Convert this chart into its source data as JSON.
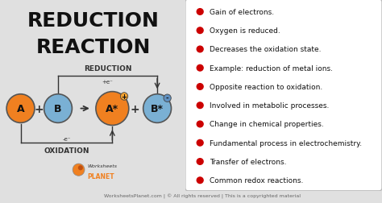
{
  "title_line1": "REDUCTION",
  "title_line2": "REACTION",
  "bg_color": "#e0e0e0",
  "right_panel_bg": "#ffffff",
  "title_color": "#111111",
  "title_fontsize": 18,
  "bullet_points": [
    "Gain of electrons.",
    "Oxygen is reduced.",
    "Decreases the oxidation state.",
    "Example: reduction of metal ions.",
    "Opposite reaction to oxidation.",
    "Involved in metabolic processes.",
    "Change in chemical properties.",
    "Fundamental process in electrochemistry.",
    "Transfer of electrons.",
    "Common redox reactions."
  ],
  "bullet_color": "#cc0000",
  "bullet_text_color": "#111111",
  "bullet_fontsize": 6.5,
  "circle_A_color": "#f08020",
  "circle_B_color": "#7ab0d4",
  "circle_Astar_color": "#f08020",
  "circle_Bstar_color": "#7ab0d4",
  "circle_border_color": "#555555",
  "label_A": "A",
  "label_B": "B",
  "label_Astar": "A*",
  "label_Bstar": "B*",
  "reduction_label": "REDUCTION",
  "oxidation_label": "OXIDATION",
  "plus_e_top": "+e⁻",
  "minus_e_bottom": "-e⁻",
  "footer_text": "WorksheetsPlanet.com | © All rights reserved | This is a copyrighted material",
  "footer_fontsize": 4.5,
  "circle_label_fontsize": 9,
  "charge_fontsize": 6
}
